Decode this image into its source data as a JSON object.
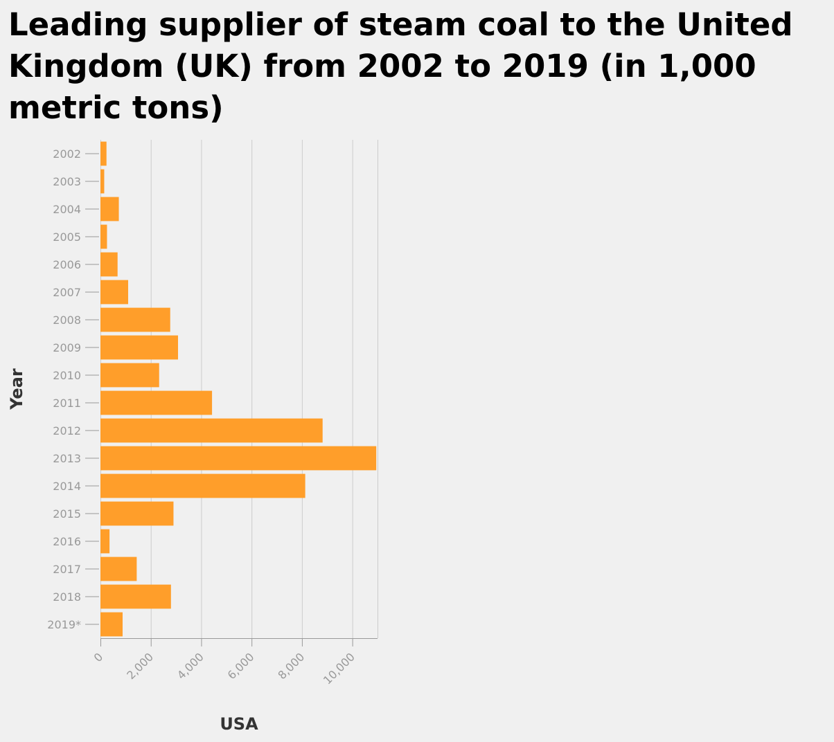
{
  "chart_data": {
    "type": "bar",
    "orientation": "horizontal",
    "title": "Leading supplier of steam coal to the United Kingdom (UK) from 2002 to 2019 (in 1,000 metric tons)",
    "xlabel": "USA",
    "ylabel": "Year",
    "categories": [
      "2002",
      "2003",
      "2004",
      "2005",
      "2006",
      "2007",
      "2008",
      "2009",
      "2010",
      "2011",
      "2012",
      "2013",
      "2014",
      "2015",
      "2016",
      "2017",
      "2018",
      "2019*"
    ],
    "values": [
      240,
      150,
      730,
      260,
      680,
      1100,
      2770,
      3080,
      2330,
      4430,
      8820,
      10950,
      8130,
      2900,
      360,
      1440,
      2800,
      880
    ],
    "xlim": [
      0,
      11000
    ],
    "xticks": [
      0,
      2000,
      4000,
      6000,
      8000,
      10000
    ],
    "xtick_labels": [
      "0",
      "2,000",
      "4,000",
      "6,000",
      "8,000",
      "10,000"
    ],
    "bar_color": "#ff9e2a",
    "grid": true
  }
}
